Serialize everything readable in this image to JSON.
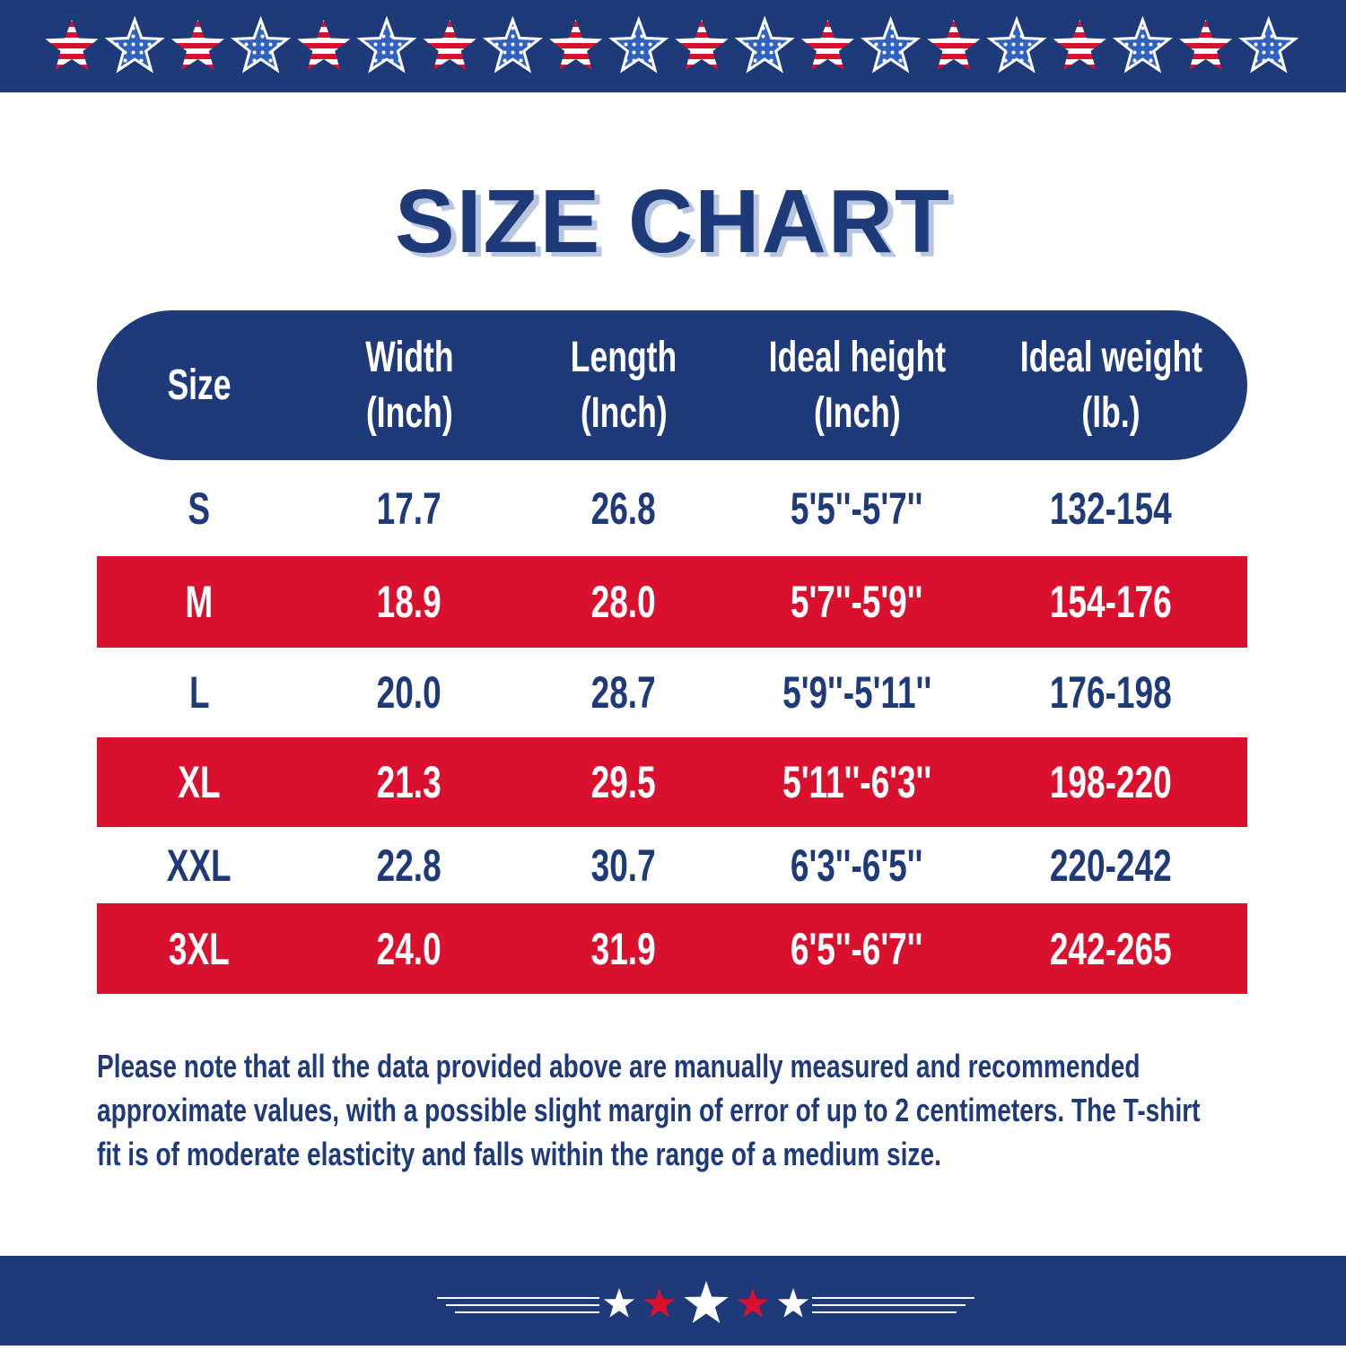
{
  "title": "SIZE CHART",
  "table": {
    "header": [
      [
        "Size"
      ],
      [
        "Width",
        "(Inch)"
      ],
      [
        "Length",
        "(Inch)"
      ],
      [
        "Ideal height",
        "(Inch)"
      ],
      [
        "Ideal weight",
        "(lb.)"
      ]
    ],
    "rows": [
      [
        "S",
        "17.7",
        "26.8",
        "5'5''-5'7''",
        "132-154"
      ],
      [
        "M",
        "18.9",
        "28.0",
        "5'7''-5'9''",
        "154-176"
      ],
      [
        "L",
        "20.0",
        "28.7",
        "5'9''-5'11''",
        "176-198"
      ],
      [
        "XL",
        "21.3",
        "29.5",
        "5'11''-6'3''",
        "198-220"
      ],
      [
        "XXL",
        "22.8",
        "30.7",
        "6'3''-6'5''",
        "220-242"
      ],
      [
        "3XL",
        "24.0",
        "31.9",
        "6'5''-6'7''",
        "242-265"
      ]
    ]
  },
  "note": [
    "Please note that all the data provided above are manually measured and recommended",
    "approximate values, with a possible slight margin of error of up to 2 centimeters. The T-shirt",
    "fit is of moderate elasticity and falls within the range of a medium size."
  ]
}
